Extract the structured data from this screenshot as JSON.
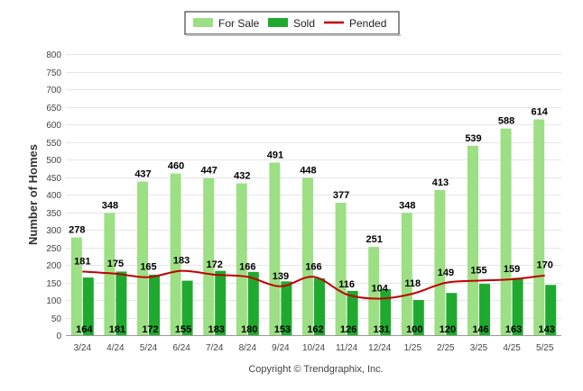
{
  "chart_data": {
    "type": "bar",
    "ylabel": "Number of Homes",
    "ylim": [
      0,
      800
    ],
    "ytick_step": 50,
    "grid": true,
    "legend_position": "top-center",
    "categories": [
      "3/24",
      "4/24",
      "5/24",
      "6/24",
      "7/24",
      "8/24",
      "9/24",
      "10/24",
      "11/24",
      "12/24",
      "1/25",
      "2/25",
      "3/25",
      "4/25",
      "5/25"
    ],
    "series": [
      {
        "name": "For Sale",
        "kind": "bar",
        "color": "#9ddf84",
        "values": [
          278,
          348,
          437,
          460,
          447,
          432,
          491,
          448,
          377,
          251,
          348,
          413,
          539,
          588,
          614
        ]
      },
      {
        "name": "Sold",
        "kind": "bar",
        "color": "#1faa2f",
        "values": [
          164,
          181,
          172,
          155,
          183,
          180,
          153,
          162,
          126,
          131,
          100,
          120,
          146,
          163,
          143
        ]
      },
      {
        "name": "Pended",
        "kind": "line",
        "color": "#c00000",
        "values": [
          181,
          175,
          165,
          183,
          172,
          166,
          139,
          166,
          116,
          104,
          118,
          149,
          155,
          159,
          170
        ]
      }
    ],
    "footer": "Copyright © Trendgraphix, Inc."
  }
}
